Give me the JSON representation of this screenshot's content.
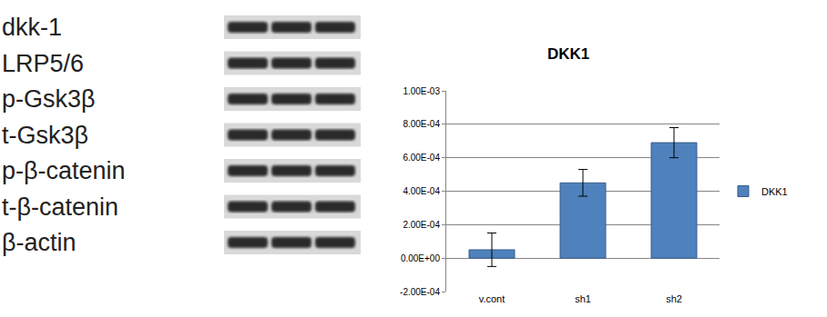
{
  "western_blot": {
    "labels": [
      "dkk-1",
      "LRP5/6",
      "p-Gsk3β",
      "t-Gsk3β",
      "p-β-catenin",
      "t-β-catenin",
      "β-actin"
    ]
  },
  "chart_data": {
    "type": "bar",
    "title": "DKK1",
    "categories": [
      "v.cont",
      "sh1",
      "sh2"
    ],
    "series": [
      {
        "name": "DKK1",
        "color": "#4f81bd",
        "values": [
          5e-05,
          0.00045,
          0.00069
        ],
        "errors": [
          0.0001,
          8e-05,
          9e-05
        ]
      }
    ],
    "ylim": [
      -0.0002,
      0.001
    ],
    "yticks": [
      {
        "value": -0.0002,
        "label": "-2.00E-04"
      },
      {
        "value": 0,
        "label": "0.00E+00"
      },
      {
        "value": 0.0002,
        "label": "2.00E-04"
      },
      {
        "value": 0.0004,
        "label": "4.00E-04"
      },
      {
        "value": 0.0006,
        "label": "6.00E-04"
      },
      {
        "value": 0.0008,
        "label": "8.00E-04"
      },
      {
        "value": 0.001,
        "label": "1.00E-03"
      }
    ],
    "grid": true,
    "legend": "right"
  }
}
